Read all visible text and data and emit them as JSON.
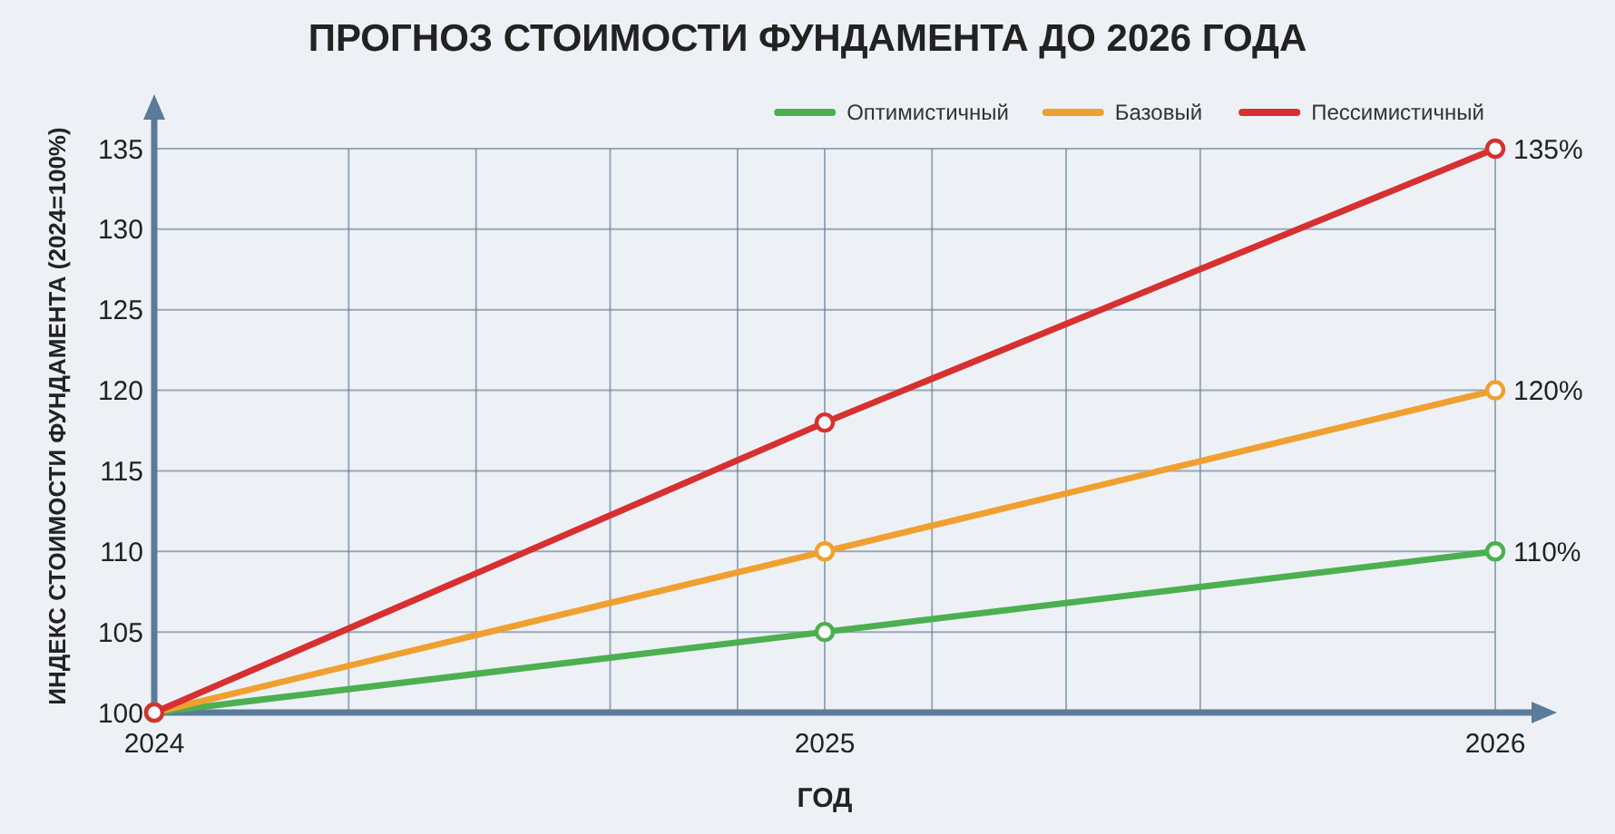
{
  "chart_data": {
    "type": "line",
    "title": "ПРОГНОЗ СТОИМОСТИ ФУНДАМЕНТА ДО 2026 ГОДА",
    "xlabel": "ГОД",
    "ylabel": "ИНДЕКС СТОИМОСТИ ФУНДАМЕНТА (2024=100%)",
    "x": [
      2024,
      2025,
      2026
    ],
    "series": [
      {
        "name": "Оптимистичный",
        "color": "#4caf50",
        "values": [
          100,
          105,
          110
        ],
        "value_labels": [
          null,
          null,
          "110%"
        ]
      },
      {
        "name": "Базовый",
        "color": "#f0a030",
        "values": [
          100,
          110,
          120
        ],
        "value_labels": [
          null,
          null,
          "120%"
        ]
      },
      {
        "name": "Пессимистичный",
        "color": "#d63031",
        "values": [
          100,
          118,
          135
        ],
        "value_labels": [
          null,
          null,
          "135%"
        ]
      }
    ],
    "xlim": [
      2024,
      2026
    ],
    "xticks": [
      2024,
      {
        "value": 2024.29,
        "label": null
      },
      {
        "value": 2024.48,
        "label": null
      },
      {
        "value": 2024.68,
        "label": null
      },
      {
        "value": 2024.87,
        "label": null
      },
      2025,
      {
        "value": 2025.16,
        "label": null
      },
      {
        "value": 2025.36,
        "label": null
      },
      {
        "value": 2025.56,
        "label": null
      },
      2026
    ],
    "ylim": [
      100,
      135
    ],
    "yticks": [
      100,
      105,
      110,
      115,
      120,
      125,
      130,
      135
    ],
    "grid": true,
    "legend": "top right",
    "marker": "circle",
    "line_style": "solid"
  }
}
